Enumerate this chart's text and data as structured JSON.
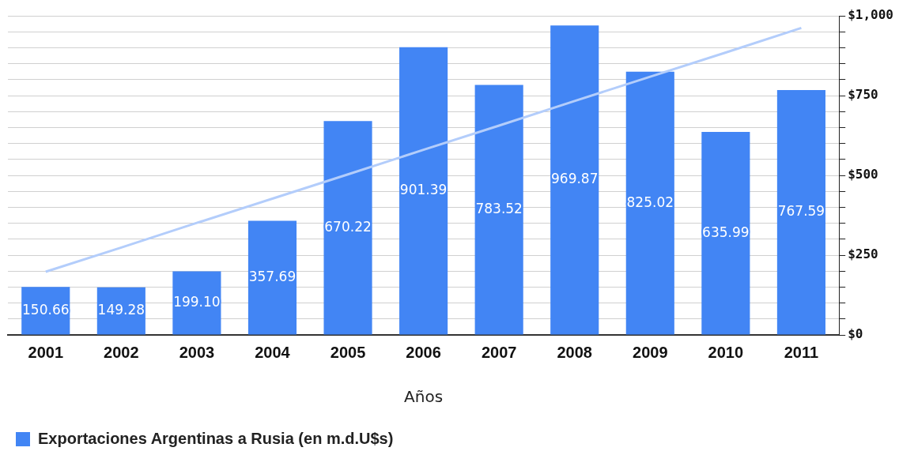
{
  "chart_data": {
    "type": "bar",
    "xlabel": "Años",
    "categories": [
      "2001",
      "2002",
      "2003",
      "2004",
      "2005",
      "2006",
      "2007",
      "2008",
      "2009",
      "2010",
      "2011"
    ],
    "series": [
      {
        "name": "Exportaciones Argentinas a Rusia (en m.d.U$s)",
        "color": "#4285f4",
        "values": [
          150.66,
          149.28,
          199.1,
          357.69,
          670.22,
          901.39,
          783.52,
          969.87,
          825.02,
          635.99,
          767.59
        ],
        "value_labels": [
          "150.66",
          "149.28",
          "199.10",
          "357.69",
          "670.22",
          "901.39",
          "783.52",
          "969.87",
          "825.02",
          "635.99",
          "767.59"
        ]
      },
      {
        "type": "line",
        "color": "#b3cdfb",
        "values": [
          198,
          274,
          351,
          427,
          503,
          580,
          656,
          733,
          809,
          885,
          962
        ]
      }
    ],
    "ylim": [
      0,
      1000
    ],
    "yticks": [
      {
        "value": 0,
        "label": "$0"
      },
      {
        "value": 50,
        "label": null
      },
      {
        "value": 100,
        "label": null
      },
      {
        "value": 150,
        "label": null
      },
      {
        "value": 200,
        "label": null
      },
      {
        "value": 250,
        "label": "$250"
      },
      {
        "value": 300,
        "label": null
      },
      {
        "value": 350,
        "label": null
      },
      {
        "value": 400,
        "label": null
      },
      {
        "value": 450,
        "label": null
      },
      {
        "value": 500,
        "label": "$500"
      },
      {
        "value": 550,
        "label": null
      },
      {
        "value": 600,
        "label": null
      },
      {
        "value": 650,
        "label": null
      },
      {
        "value": 700,
        "label": null
      },
      {
        "value": 750,
        "label": "$750"
      },
      {
        "value": 800,
        "label": null
      },
      {
        "value": 850,
        "label": null
      },
      {
        "value": 900,
        "label": null
      },
      {
        "value": 950,
        "label": null
      },
      {
        "value": 1000,
        "label": "$1,000"
      }
    ],
    "grid": "y",
    "legend": "bottom left"
  }
}
